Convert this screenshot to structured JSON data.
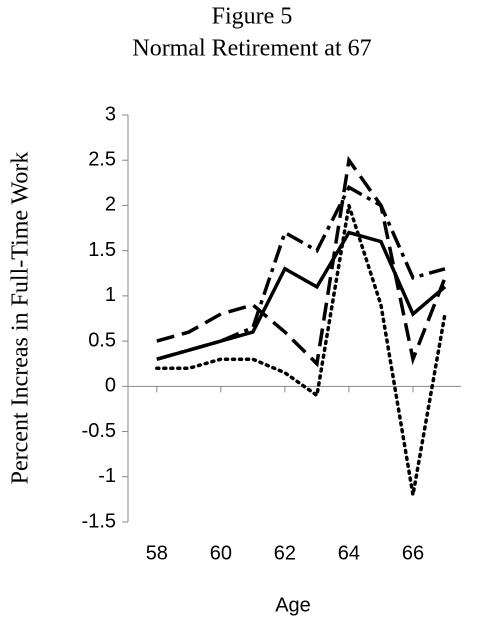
{
  "chart_data": {
    "type": "line",
    "title": "Figure 5",
    "subtitle": "Normal Retirement at 67",
    "x_label": "Age",
    "y_label": "Percent Increas in Full-Time Work",
    "x": [
      58,
      59,
      60,
      61,
      62,
      63,
      64,
      65,
      66,
      67
    ],
    "series": [
      {
        "color": "#000000",
        "dash": "solid",
        "values": [
          0.3,
          0.4,
          0.5,
          0.6,
          1.3,
          1.1,
          1.7,
          1.6,
          0.8,
          1.1
        ]
      },
      {
        "color": "#000000",
        "dash": "dashed",
        "values": [
          0.5,
          0.6,
          0.8,
          0.9,
          0.6,
          0.25,
          2.5,
          2.0,
          0.3,
          1.2
        ]
      },
      {
        "color": "#000000",
        "dash": "dashdot",
        "values": [
          0.3,
          0.4,
          0.5,
          0.65,
          1.7,
          1.5,
          2.2,
          2.0,
          1.2,
          1.3
        ]
      },
      {
        "color": "#000000",
        "dash": "dotted",
        "values": [
          0.2,
          0.2,
          0.3,
          0.3,
          0.15,
          -0.1,
          2.0,
          0.9,
          -1.2,
          0.8
        ]
      }
    ],
    "xlim": [
      57.1,
      67.5
    ],
    "xticks": [
      58,
      60,
      62,
      64,
      66
    ],
    "ylim": [
      -1.5,
      3
    ],
    "yticks": [
      -1.5,
      -1,
      -0.5,
      0,
      0.5,
      1,
      1.5,
      2,
      2.5,
      3
    ],
    "grid": false
  }
}
